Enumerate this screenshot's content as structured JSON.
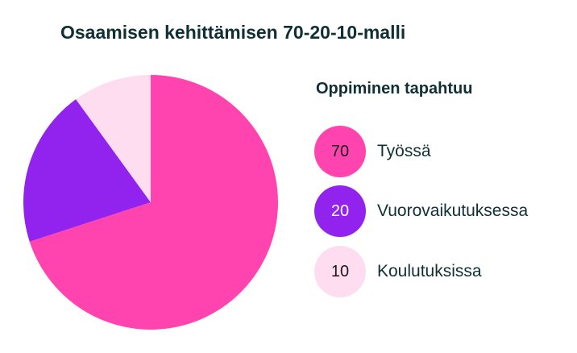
{
  "chart_data": {
    "type": "pie",
    "title": "Osaamisen kehittämisen 70-20-10-malli",
    "legend_title": "Oppiminen tapahtuu",
    "legend_placement": "right",
    "slices": [
      {
        "name": "Työssä",
        "value": 70,
        "value_label": "70",
        "color": "#ff44b0",
        "text_color": "#1a1a1a"
      },
      {
        "name": "Vuorovaikutuksessa",
        "value": 20,
        "value_label": "20",
        "color": "#9223ee",
        "text_color": "#ffffff"
      },
      {
        "name": "Koulutuksissa",
        "value": 10,
        "value_label": "10",
        "color": "#ffddf1",
        "text_color": "#1a1a1a"
      }
    ]
  }
}
